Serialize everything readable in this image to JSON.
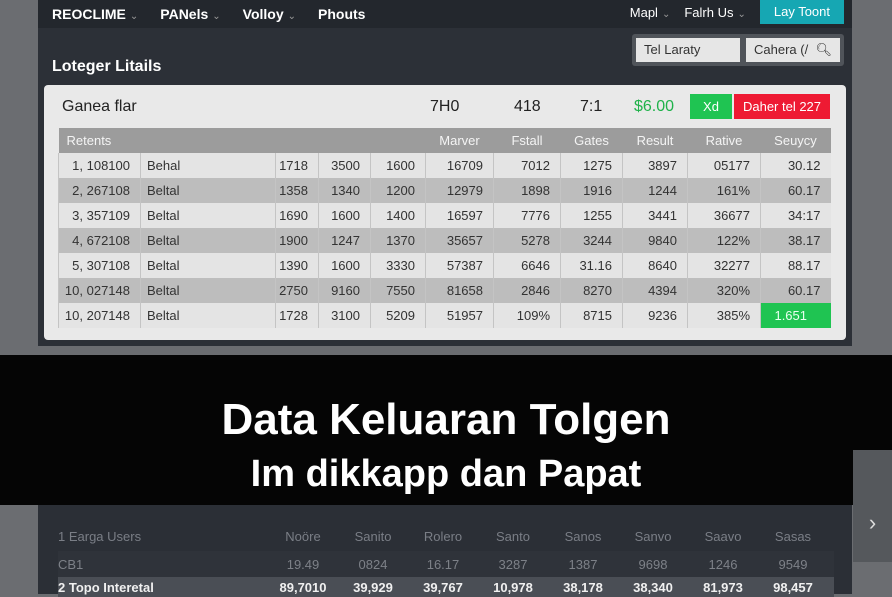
{
  "nav": {
    "items": [
      "REOCLIME",
      "PANels",
      "Volloy",
      "Phouts"
    ],
    "right": [
      "Mapl",
      "Falrh Us"
    ],
    "cta": "Lay Toont"
  },
  "page_title": "Loteger Litails",
  "search": {
    "field1": "Tel Laraty",
    "field2": "Cahera (/"
  },
  "summary": {
    "label": "Ganea flar",
    "values": [
      "7H0",
      "418",
      "7:1"
    ],
    "amount": "$6.00",
    "green_btn": "Xd",
    "red_btn": "Daher tel 227"
  },
  "table": {
    "header_first": "Retents",
    "headers": [
      "Marver",
      "Fstall",
      "Gates",
      "Result",
      "Rative",
      "Seuycy"
    ],
    "rows": [
      [
        "1, 108100",
        "Behal",
        "1718",
        "3500",
        "1600",
        "16709",
        "7012",
        "1275",
        "3897",
        "05177",
        "30.12"
      ],
      [
        "2, 267108",
        "Beltal",
        "1358",
        "1340",
        "1200",
        "12979",
        "1898",
        "1916",
        "1244",
        "161%",
        "60.17"
      ],
      [
        "3, 357109",
        "Beltal",
        "1690",
        "1600",
        "1400",
        "16597",
        "7776",
        "1255",
        "3441",
        "36677",
        "34:17"
      ],
      [
        "4, 672108",
        "Beltal",
        "1900",
        "1247",
        "1370",
        "35657",
        "5278",
        "3244",
        "9840",
        "122%",
        "38.17"
      ],
      [
        "5, 307108",
        "Beltal",
        "1390",
        "1600",
        "3330",
        "57387",
        "6646",
        "31.16",
        "8640",
        "32277",
        "88.17"
      ],
      [
        "10, 027148",
        "Beltal",
        "2750",
        "9160",
        "7550",
        "81658",
        "2846",
        "8270",
        "4394",
        "320%",
        "60.17"
      ],
      [
        "10, 207148",
        "Beltal",
        "1728",
        "3100",
        "5209",
        "51957",
        "109%",
        "8715",
        "9236",
        "385%",
        "1.651"
      ]
    ]
  },
  "overlay": {
    "line1": "Data Keluaran Tolgen",
    "line2": "Im dikkapp dan Papat"
  },
  "side_arrow": "›",
  "bottom": {
    "rows": [
      {
        "label": "1  Earga Users",
        "values": [
          "Noöre",
          "Sanito",
          "Rolero",
          "Santo",
          "Sanos",
          "Sanvo",
          "Saavo",
          "Sasas"
        ]
      },
      {
        "label": "CB1",
        "values": [
          "19.49",
          "0824",
          "16.17",
          "3287",
          "1387",
          "9698",
          "1246",
          "9549"
        ]
      },
      {
        "label": "2  Topo Interetal",
        "values": [
          "89,7010",
          "39,929",
          "39,767",
          "10,978",
          "38,178",
          "38,340",
          "81,973",
          "98,457"
        ]
      }
    ]
  }
}
